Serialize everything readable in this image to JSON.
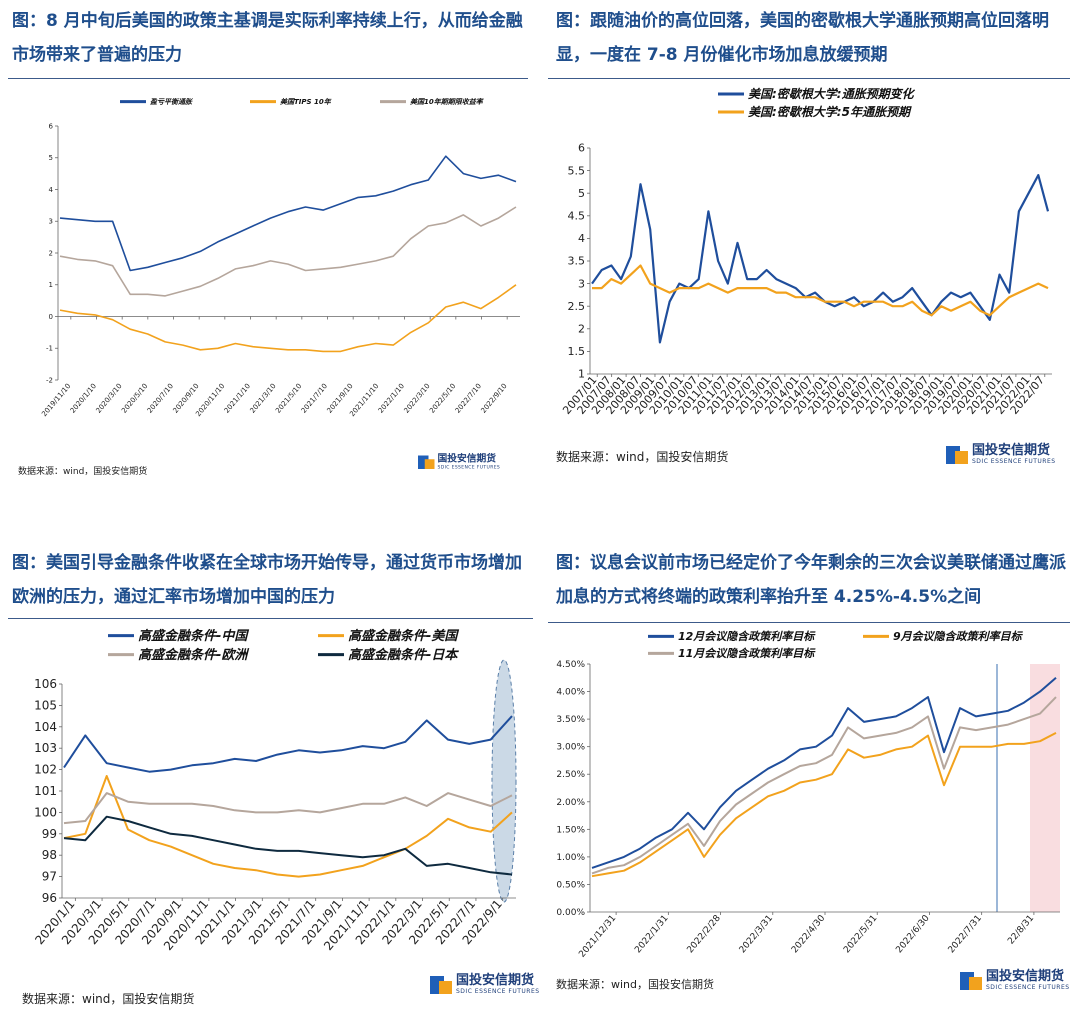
{
  "panels": [
    {
      "title": "图：8 月中旬后美国的政策主基调是实际利率持续上行，从而给金融市场带来了普遍的压力",
      "source": "数据来源：wind，国投安信期货",
      "chart_data": {
        "type": "line",
        "title": "",
        "ylim": [
          -2,
          6
        ],
        "yticks": [
          "-2",
          "-1",
          "0",
          "1",
          "2",
          "3",
          "4",
          "5",
          "6"
        ],
        "xticks": [
          "2019/11/10",
          "2020/1/10",
          "2020/3/10",
          "2020/5/10",
          "2020/7/10",
          "2020/9/10",
          "2020/11/10",
          "2021/1/10",
          "2021/3/10",
          "2021/5/10",
          "2021/7/10",
          "2021/9/10",
          "2021/11/10",
          "2022/1/10",
          "2022/3/10",
          "2022/5/10",
          "2022/7/10",
          "2022/9/10"
        ],
        "legend_position": "top",
        "series": [
          {
            "name": "盈亏平衡通胀",
            "color": "#1f4e9c",
            "values": [
              3.1,
              3.05,
              3.0,
              3.0,
              1.45,
              1.55,
              1.7,
              1.85,
              2.05,
              2.35,
              2.6,
              2.85,
              3.1,
              3.3,
              3.45,
              3.35,
              3.55,
              3.75,
              3.8,
              3.95,
              4.15,
              4.3,
              5.05,
              4.5,
              4.35,
              4.45,
              4.25
            ]
          },
          {
            "name": "美国TIPS 10年",
            "color": "#f2a21d",
            "values": [
              0.2,
              0.1,
              0.05,
              -0.1,
              -0.4,
              -0.55,
              -0.8,
              -0.9,
              -1.05,
              -1.0,
              -0.85,
              -0.95,
              -1.0,
              -1.05,
              -1.05,
              -1.1,
              -1.1,
              -0.95,
              -0.85,
              -0.9,
              -0.5,
              -0.2,
              0.3,
              0.45,
              0.25,
              0.6,
              1.0
            ]
          },
          {
            "name": "美国10年期期限收益率",
            "color": "#b5a69c",
            "values": [
              1.9,
              1.8,
              1.75,
              1.6,
              0.7,
              0.7,
              0.65,
              0.8,
              0.95,
              1.2,
              1.5,
              1.6,
              1.75,
              1.65,
              1.45,
              1.5,
              1.55,
              1.65,
              1.75,
              1.9,
              2.45,
              2.85,
              2.95,
              3.2,
              2.85,
              3.1,
              3.45
            ]
          }
        ]
      }
    },
    {
      "title": "图：跟随油价的高位回落，美国的密歇根大学通胀预期高位回落明显，一度在 7-8 月份催化市场加息放缓预期",
      "source": "数据来源：wind，国投安信期货",
      "chart_data": {
        "type": "line",
        "title": "",
        "ylim": [
          1,
          6
        ],
        "yticks": [
          "1",
          "1.5",
          "2",
          "2.5",
          "3",
          "3.5",
          "4",
          "4.5",
          "5",
          "5.5",
          "6"
        ],
        "xticks": [
          "2007/01",
          "2007/07",
          "2008/01",
          "2008/07",
          "2009/01",
          "2009/07",
          "2010/01",
          "2010/07",
          "2011/01",
          "2011/07",
          "2012/01",
          "2012/07",
          "2013/01",
          "2013/07",
          "2014/01",
          "2014/07",
          "2015/01",
          "2015/07",
          "2016/01",
          "2016/07",
          "2017/01",
          "2017/07",
          "2018/01",
          "2018/07",
          "2019/01",
          "2019/07",
          "2020/01",
          "2020/07",
          "2021/01",
          "2021/07",
          "2022/01",
          "2022/07"
        ],
        "legend_position": "top",
        "series": [
          {
            "name": "美国:密歇根大学:通胀预期变化",
            "color": "#1f4e9c",
            "values": [
              3.0,
              3.3,
              3.4,
              3.1,
              3.6,
              5.2,
              4.2,
              1.7,
              2.6,
              3.0,
              2.9,
              3.1,
              4.6,
              3.5,
              3.0,
              3.9,
              3.1,
              3.1,
              3.3,
              3.1,
              3.0,
              2.9,
              2.7,
              2.8,
              2.6,
              2.5,
              2.6,
              2.7,
              2.5,
              2.6,
              2.8,
              2.6,
              2.7,
              2.9,
              2.6,
              2.3,
              2.6,
              2.8,
              2.7,
              2.8,
              2.5,
              2.2,
              3.2,
              2.8,
              4.6,
              5.0,
              5.4,
              4.6
            ]
          },
          {
            "name": "美国:密歇根大学:5年通胀预期",
            "color": "#f2a21d",
            "values": [
              2.9,
              2.9,
              3.1,
              3.0,
              3.2,
              3.4,
              3.0,
              2.9,
              2.8,
              2.9,
              2.9,
              2.9,
              3.0,
              2.9,
              2.8,
              2.9,
              2.9,
              2.9,
              2.9,
              2.8,
              2.8,
              2.7,
              2.7,
              2.7,
              2.6,
              2.6,
              2.6,
              2.5,
              2.6,
              2.6,
              2.6,
              2.5,
              2.5,
              2.6,
              2.4,
              2.3,
              2.5,
              2.4,
              2.5,
              2.6,
              2.4,
              2.3,
              2.5,
              2.7,
              2.8,
              2.9,
              3.0,
              2.9
            ]
          }
        ]
      }
    },
    {
      "title": "图：美国引导金融条件收紧在全球市场开始传导，通过货币市场增加欧洲的压力，通过汇率市场增加中国的压力",
      "source": "数据来源：wind，国投安信期货",
      "chart_data": {
        "type": "line",
        "title": "",
        "ylim": [
          96,
          106
        ],
        "yticks": [
          "96",
          "97",
          "98",
          "99",
          "100",
          "101",
          "102",
          "103",
          "104",
          "105",
          "106"
        ],
        "xticks": [
          "2020/1/1",
          "2020/3/1",
          "2020/5/1",
          "2020/7/1",
          "2020/9/1",
          "2020/11/1",
          "2021/1/1",
          "2021/3/1",
          "2021/5/1",
          "2021/7/1",
          "2021/9/1",
          "2021/11/1",
          "2022/1/1",
          "2022/3/1",
          "2022/5/1",
          "2022/7/1",
          "2022/9/1"
        ],
        "legend_position": "top",
        "series": [
          {
            "name": "高盛金融条件-中国",
            "color": "#1f4e9c",
            "values": [
              102.1,
              103.6,
              102.3,
              102.1,
              101.9,
              102.0,
              102.2,
              102.3,
              102.5,
              102.4,
              102.7,
              102.9,
              102.8,
              102.9,
              103.1,
              103.0,
              103.3,
              104.3,
              103.4,
              103.2,
              103.4,
              104.5
            ]
          },
          {
            "name": "高盛金融条件-美国",
            "color": "#f2a21d",
            "values": [
              98.8,
              99.0,
              101.7,
              99.2,
              98.7,
              98.4,
              98.0,
              97.6,
              97.4,
              97.3,
              97.1,
              97.0,
              97.1,
              97.3,
              97.5,
              97.9,
              98.3,
              98.9,
              99.7,
              99.3,
              99.1,
              100.0
            ]
          },
          {
            "name": "高盛金融条件-欧洲",
            "color": "#b5a69c",
            "values": [
              99.5,
              99.6,
              100.9,
              100.5,
              100.4,
              100.4,
              100.4,
              100.3,
              100.1,
              100.0,
              100.0,
              100.1,
              100.0,
              100.2,
              100.4,
              100.4,
              100.7,
              100.3,
              100.9,
              100.6,
              100.3,
              100.8
            ]
          },
          {
            "name": "高盛金融条件-日本",
            "color": "#0e2a3f",
            "values": [
              98.8,
              98.7,
              99.8,
              99.6,
              99.3,
              99.0,
              98.9,
              98.7,
              98.5,
              98.3,
              98.2,
              98.2,
              98.1,
              98.0,
              97.9,
              98.0,
              98.3,
              97.5,
              97.6,
              97.4,
              97.2,
              97.1
            ]
          }
        ]
      }
    },
    {
      "title": "图：议息会议前市场已经定价了今年剩余的三次会议美联储通过鹰派加息的方式将终端的政策利率抬升至 4.25%-4.5%之间",
      "source": "数据来源：wind，国投安信期货",
      "chart_data": {
        "type": "line",
        "title": "",
        "ylim": [
          0,
          4.5
        ],
        "yticks": [
          "0.00%",
          "0.50%",
          "1.00%",
          "1.50%",
          "2.00%",
          "2.50%",
          "3.00%",
          "3.50%",
          "4.00%",
          "4.50%"
        ],
        "xticks": [
          "2021/12/31",
          "2022/1/31",
          "2022/2/28",
          "2022/3/31",
          "2022/4/30",
          "2022/5/31",
          "2022/6/30",
          "2022/7/31",
          "22/8/31"
        ],
        "legend_position": "top",
        "series": [
          {
            "name": "12月会议隐含政策利率目标",
            "color": "#1f4e9c",
            "values": [
              0.8,
              0.9,
              1.0,
              1.15,
              1.35,
              1.5,
              1.8,
              1.5,
              1.9,
              2.2,
              2.4,
              2.6,
              2.75,
              2.95,
              3.0,
              3.2,
              3.7,
              3.45,
              3.5,
              3.55,
              3.7,
              3.9,
              2.9,
              3.7,
              3.55,
              3.6,
              3.65,
              3.8,
              4.0,
              4.25
            ]
          },
          {
            "name": "9月会议隐含政策利率目标",
            "color": "#f2a21d",
            "values": [
              0.65,
              0.7,
              0.75,
              0.9,
              1.1,
              1.3,
              1.5,
              1.0,
              1.4,
              1.7,
              1.9,
              2.1,
              2.2,
              2.35,
              2.4,
              2.5,
              2.95,
              2.8,
              2.85,
              2.95,
              3.0,
              3.2,
              2.3,
              3.0,
              3.0,
              3.0,
              3.05,
              3.05,
              3.1,
              3.25
            ]
          },
          {
            "name": "11月会议隐含政策利率目标",
            "color": "#b5a69c",
            "values": [
              0.7,
              0.8,
              0.85,
              1.0,
              1.2,
              1.4,
              1.6,
              1.2,
              1.65,
              1.95,
              2.15,
              2.35,
              2.5,
              2.65,
              2.7,
              2.85,
              3.35,
              3.15,
              3.2,
              3.25,
              3.35,
              3.55,
              2.6,
              3.35,
              3.3,
              3.35,
              3.4,
              3.5,
              3.6,
              3.9
            ]
          }
        ]
      }
    }
  ],
  "logo": {
    "cn": "国投安信期货",
    "en": "SDIC ESSENCE FUTURES"
  }
}
